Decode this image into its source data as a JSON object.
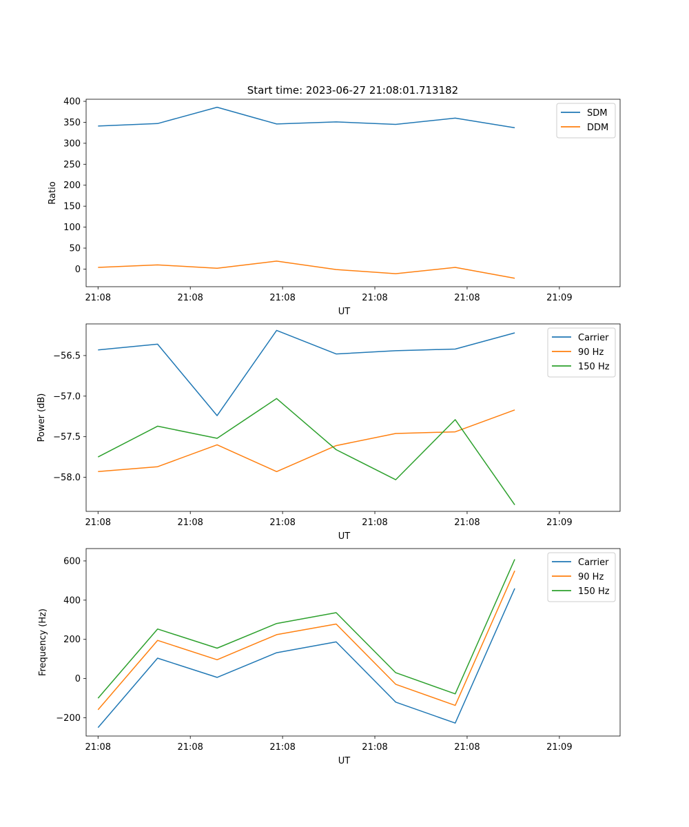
{
  "figure": {
    "title": "Start time: 2023-06-27 21:08:01.713182"
  },
  "chart_data": [
    {
      "type": "line",
      "title": "Start time: 2023-06-27 21:08:01.713182",
      "xlabel": "UT",
      "ylabel": "Ratio",
      "x_tick_labels": [
        "21:08",
        "21:08",
        "21:08",
        "21:08",
        "21:08",
        "21:08",
        "21:08"
      ],
      "x_tick_labels_last": "21:09",
      "x": [
        1,
        2,
        3,
        4,
        5,
        6,
        7,
        8
      ],
      "xlim": [
        0.8,
        9.77
      ],
      "ylim": [
        -42,
        405
      ],
      "yticks": [
        0,
        50,
        100,
        150,
        200,
        250,
        300,
        350,
        400
      ],
      "ytick_labels": [
        "0",
        "50",
        "100",
        "150",
        "200",
        "250",
        "300",
        "350",
        "400"
      ],
      "legend": "top-right",
      "grid": false,
      "series": [
        {
          "name": "SDM",
          "color": "#1f77b4",
          "values": [
            341,
            347,
            386,
            346,
            351,
            345,
            360,
            337
          ]
        },
        {
          "name": "DDM",
          "color": "#ff7f0e",
          "values": [
            4,
            10,
            2,
            19,
            -1,
            -11,
            4,
            -22
          ]
        }
      ]
    },
    {
      "type": "line",
      "xlabel": "UT",
      "ylabel": "Power (dB)",
      "x_tick_labels": [
        "21:08",
        "21:08",
        "21:08",
        "21:08",
        "21:08",
        "21:08",
        "21:08"
      ],
      "x_tick_labels_last": "21:09",
      "x": [
        1,
        2,
        3,
        4,
        5,
        6,
        7,
        8
      ],
      "xlim": [
        0.8,
        9.77
      ],
      "ylim": [
        -58.42,
        -56.11
      ],
      "yticks": [
        -56.5,
        -57.0,
        -57.5,
        -58.0
      ],
      "ytick_labels": [
        "−56.5",
        "−57.0",
        "−57.5",
        "−58.0"
      ],
      "legend": "top-right",
      "grid": false,
      "series": [
        {
          "name": "Carrier",
          "color": "#1f77b4",
          "values": [
            -56.43,
            -56.36,
            -57.24,
            -56.19,
            -56.48,
            -56.44,
            -56.42,
            -56.22
          ]
        },
        {
          "name": "90 Hz",
          "color": "#ff7f0e",
          "values": [
            -57.93,
            -57.87,
            -57.6,
            -57.93,
            -57.61,
            -57.46,
            -57.44,
            -57.17
          ]
        },
        {
          "name": "150 Hz",
          "color": "#2ca02c",
          "values": [
            -57.75,
            -57.37,
            -57.52,
            -57.03,
            -57.66,
            -58.03,
            -57.29,
            -58.34
          ]
        }
      ]
    },
    {
      "type": "line",
      "xlabel": "UT",
      "ylabel": "Frequency (Hz)",
      "x_tick_labels": [
        "21:08",
        "21:08",
        "21:08",
        "21:08",
        "21:08",
        "21:08",
        "21:08"
      ],
      "x_tick_labels_last": "21:09",
      "x": [
        1,
        2,
        3,
        4,
        5,
        6,
        7,
        8
      ],
      "xlim": [
        0.8,
        9.77
      ],
      "ylim": [
        -293,
        663
      ],
      "yticks": [
        600,
        400,
        200,
        0,
        -200
      ],
      "ytick_labels": [
        "600",
        "400",
        "200",
        "0",
        "−200"
      ],
      "legend": "top-right",
      "grid": false,
      "series": [
        {
          "name": "Carrier",
          "color": "#1f77b4",
          "values": [
            -250,
            104,
            6,
            132,
            187,
            -120,
            -227,
            460
          ]
        },
        {
          "name": "90 Hz",
          "color": "#ff7f0e",
          "values": [
            -159,
            195,
            96,
            224,
            278,
            -29,
            -137,
            550
          ]
        },
        {
          "name": "150 Hz",
          "color": "#2ca02c",
          "values": [
            -100,
            253,
            155,
            281,
            336,
            30,
            -78,
            608
          ]
        }
      ]
    }
  ]
}
